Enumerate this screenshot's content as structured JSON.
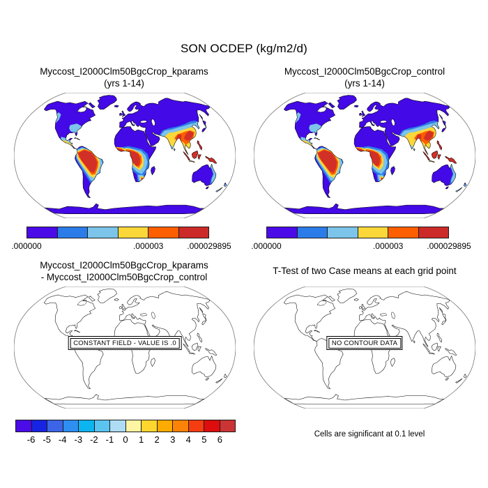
{
  "title": "SON OCDEP (kg/m2/d)",
  "panels": {
    "top_left": {
      "title_line1": "Myccost_I2000Clm50BgcCrop_kparams",
      "title_line2": "(yrs 1-14)"
    },
    "top_right": {
      "title_line1": "Myccost_I2000Clm50BgcCrop_control",
      "title_line2": "(yrs 1-14)"
    },
    "bottom_left": {
      "title_line1": "Myccost_I2000Clm50BgcCrop_kparams",
      "title_line2": "- Myccost_I2000Clm50BgcCrop_control",
      "overlay_label": "CONSTANT FIELD - VALUE IS .0"
    },
    "bottom_right": {
      "title": "T-Test of two Case means at each grid point",
      "overlay_label": "NO CONTOUR DATA",
      "footnote": "Cells are significant at 0.1 level"
    }
  },
  "colorbars": {
    "top": {
      "colors": [
        "#4a0be8",
        "#2b7ce8",
        "#7cc4ea",
        "#fcd73a",
        "#fd5f00",
        "#cc2a29"
      ],
      "labels": [
        {
          "text": ".000000",
          "frac": 0
        },
        {
          "text": ".000003",
          "frac": 0.6667
        },
        {
          "text": ".000029895",
          "frac": 1
        }
      ]
    },
    "diff": {
      "colors": [
        "#4b0ce8",
        "#1723e3",
        "#3b64e6",
        "#2e8ef2",
        "#0cb4f0",
        "#5bc3f0",
        "#aedcf5",
        "#fdf5a3",
        "#ffd62e",
        "#fdab00",
        "#fd8308",
        "#f63d12",
        "#de0d0d",
        "#cb3434"
      ],
      "labels": [
        "-6",
        "-5",
        "-4",
        "-3",
        "-2",
        "-1",
        "0",
        "1",
        "2",
        "3",
        "4",
        "5",
        "6"
      ]
    }
  },
  "map": {
    "land_color": "#4309e6",
    "ocean_color": "#ffffff",
    "coast_color": "#000000",
    "frame_color": "#777777",
    "palette": {
      "blue": "#2b7ce8",
      "sky": "#7cc4ea",
      "yellow": "#fcd73a",
      "orange": "#fd5f00",
      "red": "#d23027"
    }
  },
  "chart_data": [
    {
      "type": "map",
      "panel": "top_left",
      "projection": "robinson",
      "title": "Myccost_I2000Clm50BgcCrop_kparams (yrs 1-14)",
      "variable": "SON OCDEP",
      "units": "kg/m2/d",
      "colorbar_labels": [
        ".000000",
        ".000003",
        ".000029895"
      ],
      "colorbar_colors": [
        "#4a0be8",
        "#2b7ce8",
        "#7cc4ea",
        "#fcd73a",
        "#fd5f00",
        "#cc2a29"
      ],
      "high_value_regions": [
        "Amazonia",
        "central Africa",
        "West Africa coast",
        "southeast Africa",
        "South Asia",
        "Southeast China",
        "Indochina",
        "Indonesia",
        "Central America"
      ]
    },
    {
      "type": "map",
      "panel": "top_right",
      "projection": "robinson",
      "title": "Myccost_I2000Clm50BgcCrop_control (yrs 1-14)",
      "variable": "SON OCDEP",
      "units": "kg/m2/d",
      "colorbar_labels": [
        ".000000",
        ".000003",
        ".000029895"
      ],
      "colorbar_colors": [
        "#4a0be8",
        "#2b7ce8",
        "#7cc4ea",
        "#fcd73a",
        "#fd5f00",
        "#cc2a29"
      ],
      "high_value_regions": [
        "Amazonia",
        "central Africa",
        "West Africa coast",
        "southeast Africa",
        "South Asia",
        "Southeast China",
        "Indochina",
        "Indonesia",
        "Central America"
      ]
    },
    {
      "type": "map",
      "panel": "bottom_left",
      "projection": "robinson",
      "title": "Myccost_I2000Clm50BgcCrop_kparams - Myccost_I2000Clm50BgcCrop_control",
      "annotation": "CONSTANT FIELD - VALUE IS .0",
      "field_value": 0,
      "colorbar_levels": [
        -6,
        -5,
        -4,
        -3,
        -2,
        -1,
        0,
        1,
        2,
        3,
        4,
        5,
        6
      ],
      "colorbar_colors": [
        "#4b0ce8",
        "#1723e3",
        "#3b64e6",
        "#2e8ef2",
        "#0cb4f0",
        "#5bc3f0",
        "#aedcf5",
        "#fdf5a3",
        "#ffd62e",
        "#fdab00",
        "#fd8308",
        "#f63d12",
        "#de0d0d",
        "#cb3434"
      ]
    },
    {
      "type": "map",
      "panel": "bottom_right",
      "projection": "robinson",
      "title": "T-Test of two Case means at each grid point",
      "annotation": "NO CONTOUR DATA",
      "footnote": "Cells are significant at 0.1 level"
    }
  ]
}
